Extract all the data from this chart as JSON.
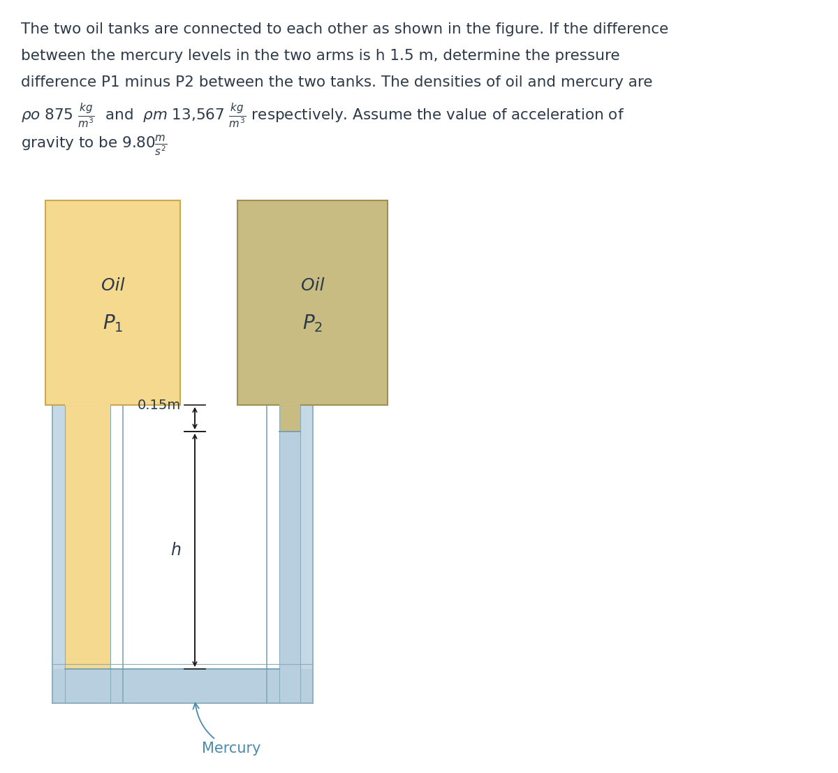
{
  "text_color": "#2d3a4a",
  "background_color": "#ffffff",
  "oil_color_left": "#f5d98e",
  "oil_color_right": "#c8bc82",
  "oil_border_left": "#c8a850",
  "oil_border_right": "#a09050",
  "mercury_color": "#b8cfe0",
  "pipe_color": "#c5d8e5",
  "pipe_border_color": "#8aabb8",
  "arrow_color": "#1a1a1a",
  "mercury_label_color": "#4a8aaa",
  "label_0p15": "0.15m",
  "label_h": "h",
  "label_mercury": "Mercury",
  "label_oil": "Oil",
  "label_P1": "$P_1$",
  "label_P2": "$P_2$",
  "fig_width": 12.0,
  "fig_height": 11.07,
  "dpi": 100
}
